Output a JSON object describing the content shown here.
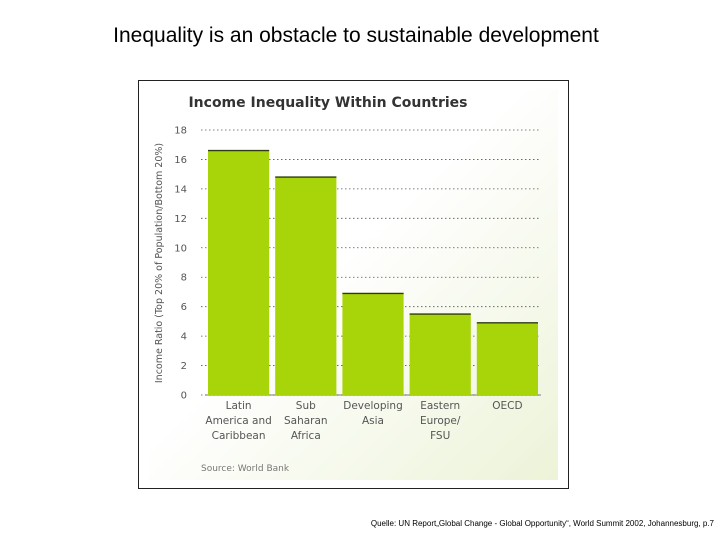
{
  "slide": {
    "title": "Inequality is an obstacle to sustainable development",
    "footer": "Quelle: UN Report„Global Change - Global Opportunity“, World Summit 2002, Johannesburg,  p.7"
  },
  "colors": {
    "bar": "#a8d40a",
    "bar_top": "#2f3a10",
    "panel_start": "#ffffff",
    "panel_end": "#ecf3d8",
    "grid": "#555555",
    "text": "#555555",
    "title": "#333333"
  },
  "chart_data": {
    "type": "bar",
    "title": "Income Inequality Within Countries",
    "ylabel": "Income Ratio (Top 20% of Population/Bottom 20%)",
    "xlabel": "",
    "categories": [
      [
        "Latin",
        "America and",
        "Caribbean"
      ],
      [
        "Sub",
        "Saharan",
        "Africa"
      ],
      [
        "Developing",
        "Asia"
      ],
      [
        "Eastern",
        "Europe/",
        "FSU"
      ],
      [
        "OECD"
      ]
    ],
    "values": [
      16.6,
      14.8,
      6.9,
      5.5,
      4.9
    ],
    "ylim": [
      0,
      18
    ],
    "yticks": [
      0,
      2,
      4,
      6,
      8,
      10,
      12,
      14,
      16,
      18
    ],
    "ytick_labels": [
      "0",
      "2",
      "4",
      "6",
      "8",
      "10",
      "12",
      "14",
      "16",
      "18"
    ],
    "grid": true,
    "source": "Source: World Bank"
  }
}
